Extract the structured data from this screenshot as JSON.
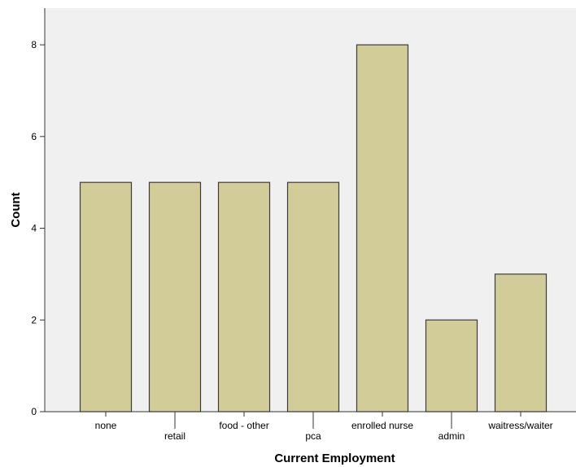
{
  "chart_data": {
    "type": "bar",
    "title": "",
    "xlabel": "Current Employment",
    "ylabel": "Count",
    "categories": [
      "none",
      "retail",
      "food - other",
      "pca",
      "enrolled nurse",
      "admin",
      "waitress/waiter"
    ],
    "values": [
      5,
      5,
      5,
      5,
      8,
      2,
      3
    ],
    "ylim": [
      0,
      8.8
    ],
    "yticks": [
      0,
      2,
      4,
      6,
      8
    ],
    "grid": false,
    "legend": "none",
    "colors": {
      "bar_fill": "#d2cd98",
      "bar_stroke": "#3c3c3c",
      "plot_background": "#f0f0f0",
      "axis": "#333333"
    }
  }
}
